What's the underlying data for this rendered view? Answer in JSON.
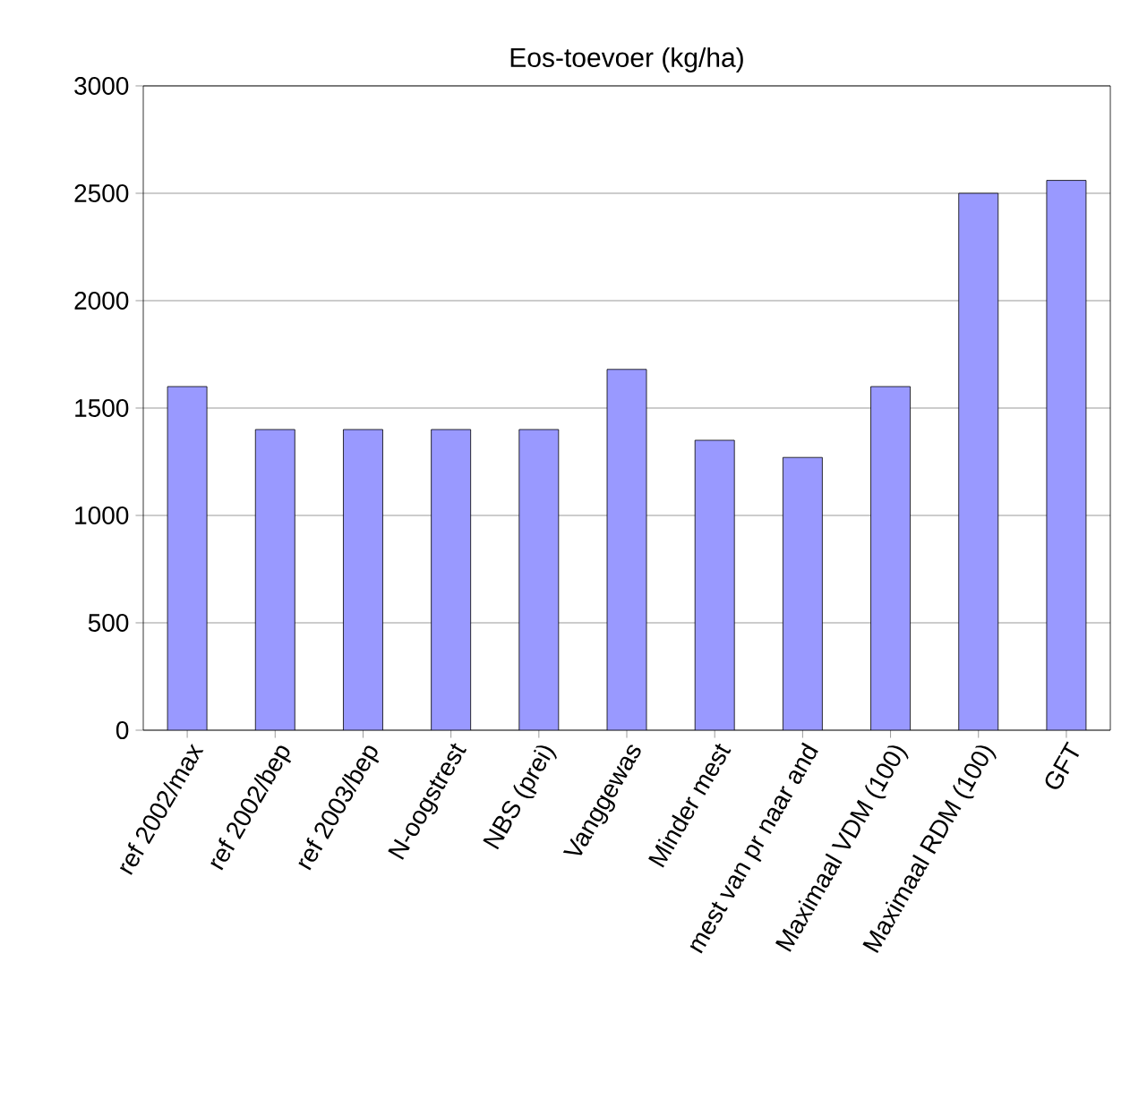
{
  "chart_data": {
    "type": "bar",
    "title": "Eos-toevoer (kg/ha)",
    "categories": [
      "ref 2002/max",
      "ref 2002/bep",
      "ref 2003/bep",
      "N-oogstrest",
      "NBS (prei)",
      "Vanggewas",
      "Minder mest",
      "mest van pr naar and",
      "Maximaal VDM (100)",
      "Maximaal RDM (100)",
      "GFT"
    ],
    "values": [
      1600,
      1400,
      1400,
      1400,
      1400,
      1680,
      1350,
      1270,
      1600,
      2500,
      2560
    ],
    "color": "#9999ff",
    "ylim": [
      0,
      3000
    ],
    "yticks": [
      0,
      500,
      1000,
      1500,
      2000,
      2500,
      3000
    ],
    "grid": "y"
  }
}
